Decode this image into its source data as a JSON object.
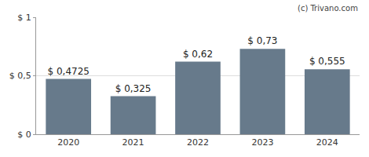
{
  "chart_data": {
    "type": "bar",
    "categories": [
      "2020",
      "2021",
      "2022",
      "2023",
      "2024"
    ],
    "values": [
      0.4725,
      0.325,
      0.62,
      0.73,
      0.555
    ],
    "value_labels": [
      "$ 0,4725",
      "$ 0,325",
      "$ 0,62",
      "$ 0,73",
      "$ 0,555"
    ],
    "color": "#677a8b",
    "ylim": [
      0,
      1
    ],
    "yticks": [
      {
        "value": 0,
        "label": "$ 0"
      },
      {
        "value": 0.5,
        "label": "$ 0,5"
      },
      {
        "value": 1,
        "label": "$ 1"
      }
    ],
    "grid": true,
    "data_labels": true,
    "annotations": [
      "(c) Trivano.com"
    ]
  }
}
